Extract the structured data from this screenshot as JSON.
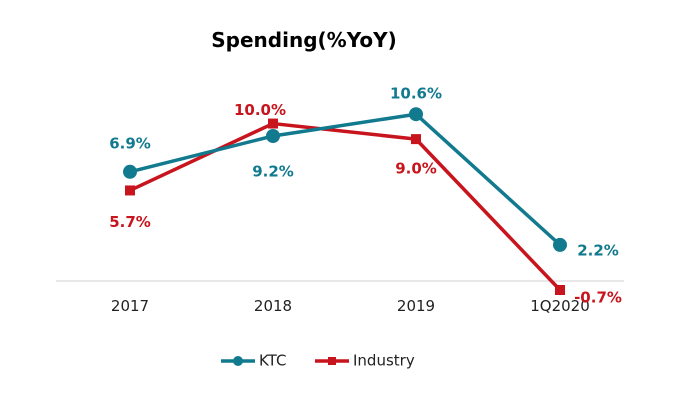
{
  "chart_data": {
    "type": "line",
    "title": "Spending(%YoY)",
    "categories": [
      "2017",
      "2018",
      "2019",
      "1Q2020"
    ],
    "series": [
      {
        "name": "KTC",
        "values": [
          6.9,
          9.2,
          10.6,
          2.2
        ],
        "labels": [
          "6.9%",
          "9.2%",
          "10.6%",
          "2.2%"
        ],
        "color": "#127a8e",
        "marker": "circle"
      },
      {
        "name": "Industry",
        "values": [
          5.7,
          10.0,
          9.0,
          -0.7
        ],
        "labels": [
          "5.7%",
          "10.0%",
          "9.0%",
          "-0.7%"
        ],
        "color": "#c8141d",
        "marker": "square"
      }
    ],
    "xlabel": "",
    "ylabel": "",
    "ylim": [
      -0.7,
      11
    ],
    "grid": false,
    "legend": "bottom-center"
  }
}
